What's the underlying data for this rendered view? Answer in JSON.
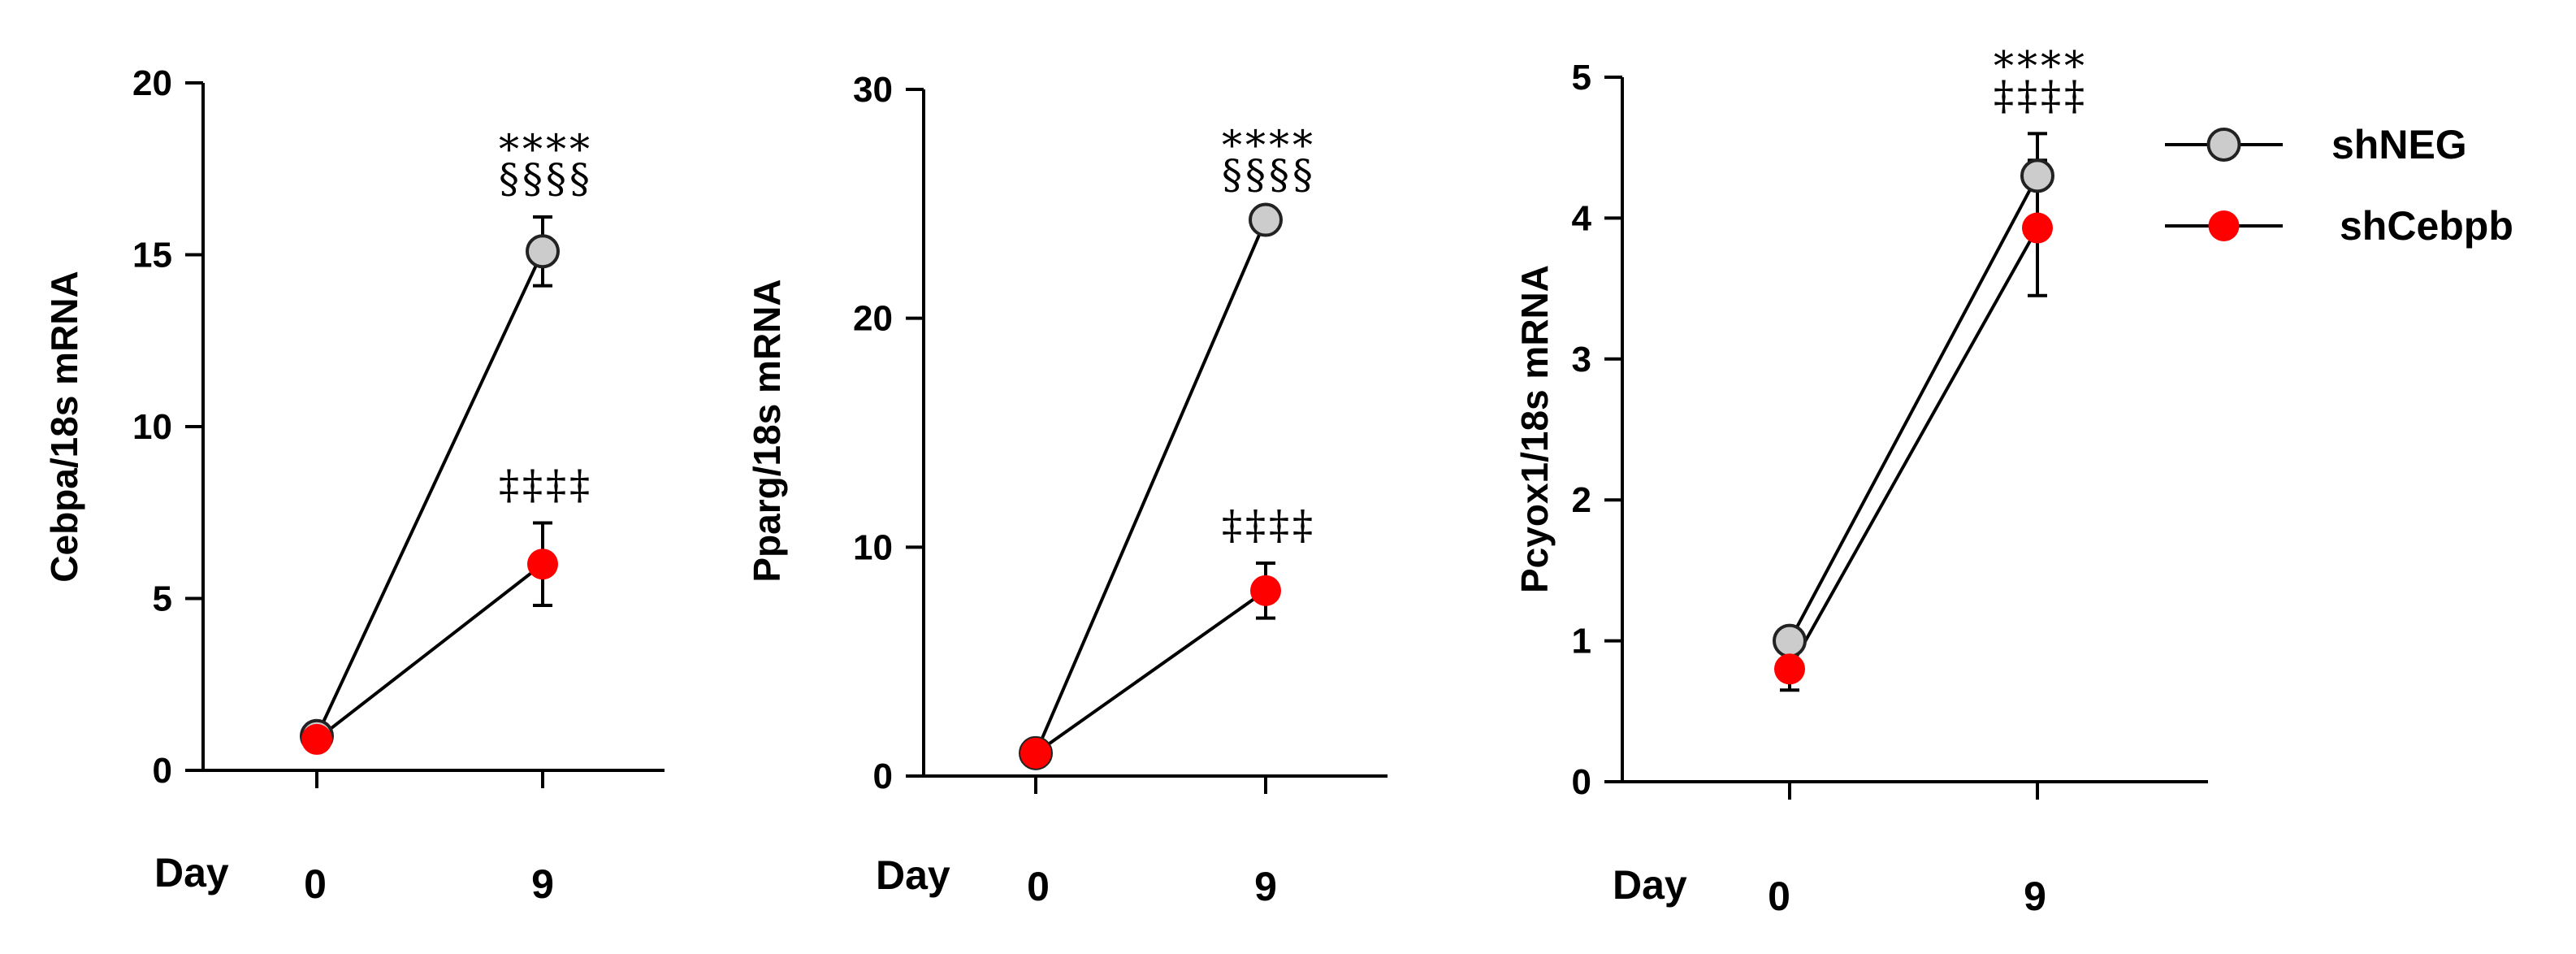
{
  "chart_data": [
    {
      "type": "line",
      "title": "",
      "xlabel": "Day",
      "ylabel": "Cebpa/18s mRNA",
      "categories": [
        "0",
        "9"
      ],
      "ylim": [
        0,
        20
      ],
      "yticks": [
        "0",
        "5",
        "10",
        "15",
        "20"
      ],
      "series": [
        {
          "name": "shNEG",
          "values": [
            1.0,
            15.1
          ],
          "errors": [
            0.1,
            1.0
          ]
        },
        {
          "name": "shCebpb",
          "values": [
            0.9,
            6.0
          ],
          "errors": [
            0.1,
            1.2
          ]
        }
      ],
      "annotations": [
        {
          "category": "9",
          "series": "shNEG",
          "lines": [
            "****",
            "§§§§"
          ]
        },
        {
          "category": "9",
          "series": "shCebpb",
          "lines": [
            "‡‡‡‡"
          ]
        }
      ]
    },
    {
      "type": "line",
      "title": "",
      "xlabel": "Day",
      "ylabel": "Pparg/18s mRNA",
      "categories": [
        "0",
        "9"
      ],
      "ylim": [
        0,
        30
      ],
      "yticks": [
        "0",
        "10",
        "20",
        "30"
      ],
      "series": [
        {
          "name": "shNEG",
          "values": [
            1.0,
            24.3
          ],
          "errors": [
            0.1,
            0.3
          ]
        },
        {
          "name": "shCebpb",
          "values": [
            1.0,
            8.1
          ],
          "errors": [
            0.1,
            1.2
          ]
        }
      ],
      "annotations": [
        {
          "category": "9",
          "series": "shNEG",
          "lines": [
            "****",
            "§§§§"
          ]
        },
        {
          "category": "9",
          "series": "shCebpb",
          "lines": [
            "‡‡‡‡"
          ]
        }
      ]
    },
    {
      "type": "line",
      "title": "",
      "xlabel": "Day",
      "ylabel": "Pcyox1/18s mRNA",
      "categories": [
        "0",
        "9"
      ],
      "ylim": [
        0,
        5
      ],
      "yticks": [
        "0",
        "1",
        "2",
        "3",
        "4",
        "5"
      ],
      "series": [
        {
          "name": "shNEG",
          "values": [
            1.0,
            4.3
          ],
          "errors": [
            0.05,
            0.3
          ]
        },
        {
          "name": "shCebpb",
          "values": [
            0.8,
            3.93
          ],
          "errors": [
            0.15,
            0.48
          ]
        }
      ],
      "annotations": [
        {
          "category": "9",
          "series": "shNEG",
          "lines": [
            "****",
            "‡‡‡‡"
          ]
        }
      ]
    }
  ],
  "legend": [
    {
      "label": "shNEG",
      "color": "#cccccc"
    },
    {
      "label": "shCebpb",
      "color": "#ff0000"
    }
  ]
}
